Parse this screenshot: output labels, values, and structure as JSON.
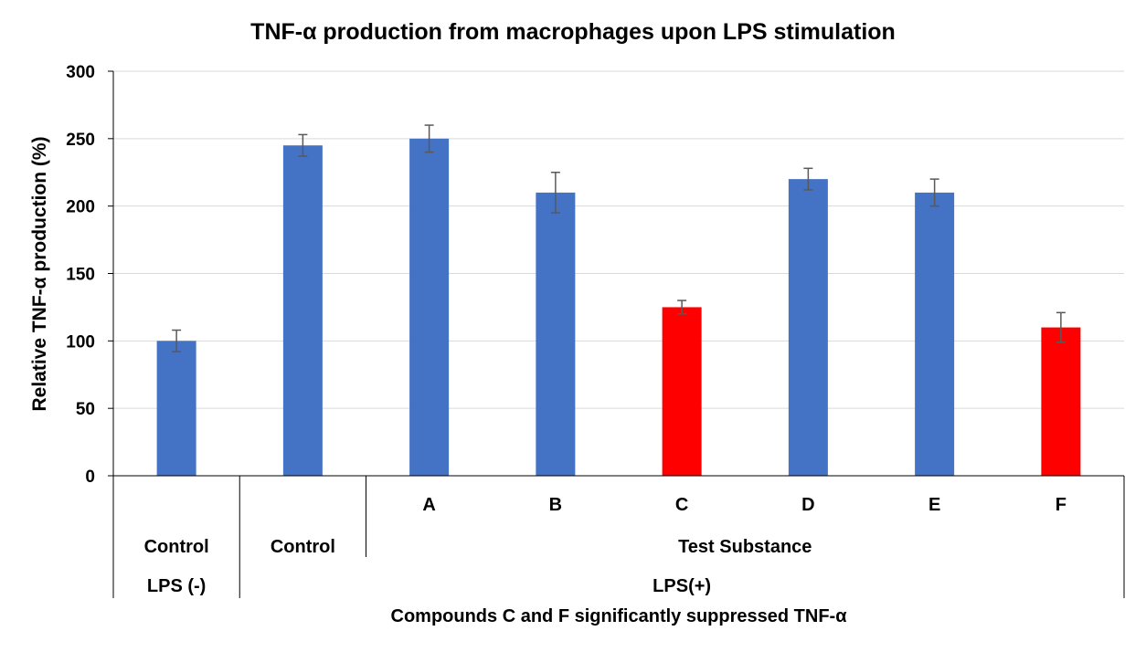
{
  "chart_data": {
    "type": "bar",
    "title": "TNF-α production from macrophages upon LPS stimulation",
    "ylabel": "Relative TNF-α production (%)",
    "xlabel": "Compounds C and F significantly suppressed TNF-α",
    "ylim": [
      0,
      300
    ],
    "yticks": [
      0,
      50,
      100,
      150,
      200,
      250,
      300
    ],
    "grid": true,
    "categories": [
      "",
      "",
      "A",
      "B",
      "C",
      "D",
      "E",
      "F"
    ],
    "values": [
      100,
      245,
      250,
      210,
      125,
      220,
      210,
      110
    ],
    "errors": [
      8,
      8,
      10,
      15,
      5,
      8,
      10,
      11
    ],
    "colors": [
      "#4472C4",
      "#4472C4",
      "#4472C4",
      "#4472C4",
      "#FF0000",
      "#4472C4",
      "#4472C4",
      "#FF0000"
    ],
    "group_level2": [
      {
        "label": "Control",
        "span": [
          0,
          0
        ]
      },
      {
        "label": "Control",
        "span": [
          1,
          1
        ]
      },
      {
        "label": "Test Substance",
        "span": [
          2,
          7
        ]
      }
    ],
    "group_level3": [
      {
        "label": "LPS (-)",
        "span": [
          0,
          0
        ]
      },
      {
        "label": "LPS(+)",
        "span": [
          1,
          7
        ]
      }
    ]
  }
}
